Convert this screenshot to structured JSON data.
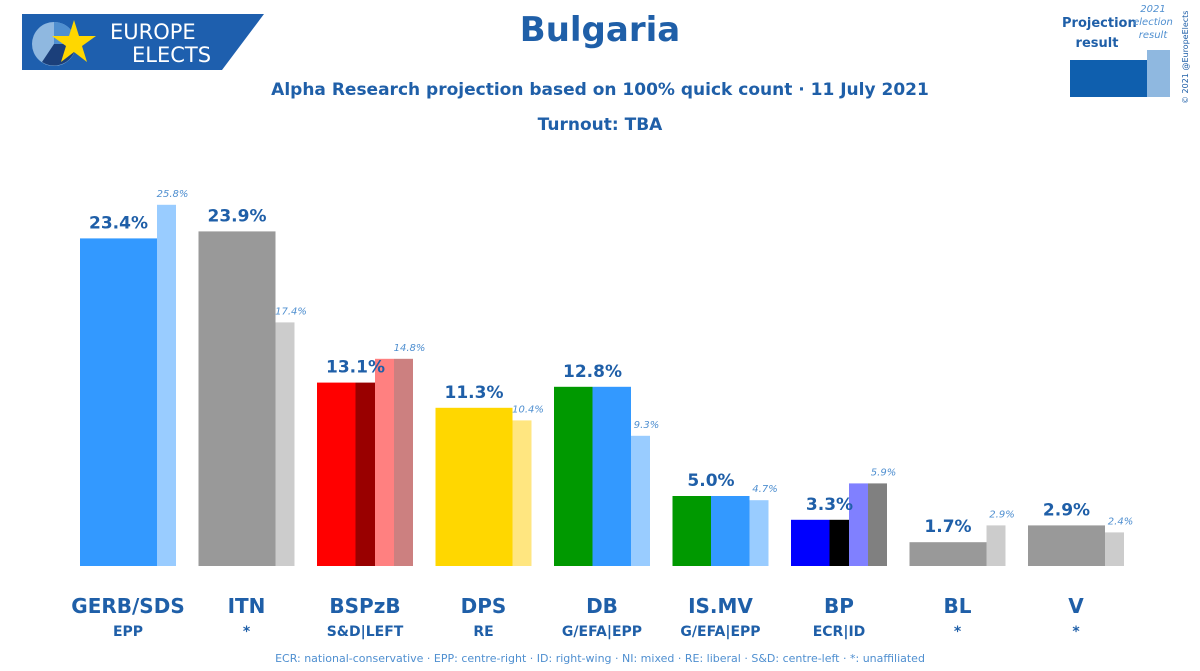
{
  "logo": {
    "line1": "EUROPE",
    "line2": "ELECTS"
  },
  "title": "Bulgaria",
  "subtitle": "Alpha Research projection based on 100% quick count · 11 July 2021",
  "turnout": "Turnout: TBA",
  "legend": {
    "projection_line1": "Projection",
    "projection_line2": "result",
    "previous_line1": "2021",
    "previous_line2": "election",
    "previous_line3": "result"
  },
  "copyright": "© 2021 @EuropeElects",
  "footnote": "ECR: national-conservative · EPP: centre-right · ID: right-wing · NI: mixed · RE: liberal · S&D: centre-left · *: unaffiliated",
  "colors": {
    "brand_blue": "#1f5fa8",
    "legend_projection": "#0f5fae",
    "legend_previous": "#8fb8e0"
  },
  "chart_data": {
    "type": "bar",
    "title": "Bulgaria",
    "categories": [
      "GERB/SDS",
      "ITN",
      "BSPzB",
      "DPS",
      "DB",
      "IS.MV",
      "BP",
      "BL",
      "V"
    ],
    "groups": [
      "EPP",
      "*",
      "S&D|LEFT",
      "RE",
      "G/EFA|EPP",
      "G/EFA|EPP",
      "ECR|ID",
      "*",
      "*"
    ],
    "series": [
      {
        "values": [
          23.4,
          23.9,
          13.1,
          11.3,
          12.8,
          5.0,
          3.3,
          1.7,
          2.9
        ]
      },
      {
        "values": [
          25.8,
          17.4,
          14.8,
          10.4,
          9.3,
          4.7,
          5.9,
          2.9,
          2.4
        ]
      }
    ],
    "value_labels_projection": [
      "23.4%",
      "23.9%",
      "13.1%",
      "11.3%",
      "12.8%",
      "5.0%",
      "3.3%",
      "1.7%",
      "2.9%"
    ],
    "value_labels_previous": [
      "25.8%",
      "17.4%",
      "14.8%",
      "10.4%",
      "9.3%",
      "4.7%",
      "5.9%",
      "2.9%",
      "2.4%"
    ],
    "projection_colors": [
      [
        "#3399ff"
      ],
      [
        "#999999"
      ],
      [
        "#ff0000",
        "#990000"
      ],
      [
        "#ffd700"
      ],
      [
        "#009900",
        "#3399ff"
      ],
      [
        "#009900",
        "#3399ff"
      ],
      [
        "#0000ff",
        "#000000"
      ],
      [
        "#999999"
      ],
      [
        "#999999"
      ]
    ],
    "previous_colors": [
      [
        "#99ccff"
      ],
      [
        "#cccccc"
      ],
      [
        "#ff8080",
        "#cc8080"
      ],
      [
        "#ffe680"
      ],
      [
        "#99ccff"
      ],
      [
        "#99ccff"
      ],
      [
        "#8080ff",
        "#808080"
      ],
      [
        "#cccccc"
      ],
      [
        "#cccccc"
      ]
    ],
    "ylim": [
      0,
      25.8
    ],
    "grid": false,
    "legend_position": "top-right"
  }
}
